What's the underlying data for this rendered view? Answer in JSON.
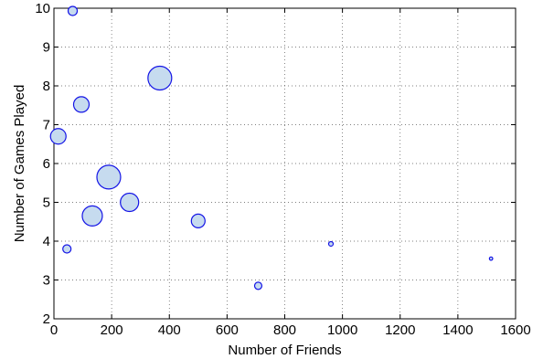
{
  "chart_data": {
    "type": "scatter",
    "xlabel": "Number of Friends",
    "ylabel": "Number of Games Played",
    "xlim": [
      0,
      1600
    ],
    "ylim": [
      2,
      10
    ],
    "xticks": [
      0,
      200,
      400,
      600,
      800,
      1000,
      1200,
      1400,
      1600
    ],
    "yticks": [
      2,
      3,
      4,
      5,
      6,
      7,
      8,
      9,
      10
    ],
    "grid": true,
    "marker_fill": "#c6dbef",
    "marker_edge": "#1414e6",
    "encoding": {
      "marker_size": "relative magnitude, unlabeled"
    },
    "points": [
      {
        "x": 65,
        "y": 9.93,
        "size": 5
      },
      {
        "x": 367,
        "y": 8.2,
        "size": 13
      },
      {
        "x": 95,
        "y": 7.52,
        "size": 8.5
      },
      {
        "x": 15,
        "y": 6.7,
        "size": 8.5
      },
      {
        "x": 190,
        "y": 5.65,
        "size": 13
      },
      {
        "x": 262,
        "y": 5.0,
        "size": 10
      },
      {
        "x": 133,
        "y": 4.65,
        "size": 11
      },
      {
        "x": 500,
        "y": 4.52,
        "size": 7.5
      },
      {
        "x": 45,
        "y": 3.8,
        "size": 4.5
      },
      {
        "x": 960,
        "y": 3.93,
        "size": 2.5
      },
      {
        "x": 1515,
        "y": 3.55,
        "size": 1.8
      },
      {
        "x": 708,
        "y": 2.85,
        "size": 4
      }
    ]
  }
}
